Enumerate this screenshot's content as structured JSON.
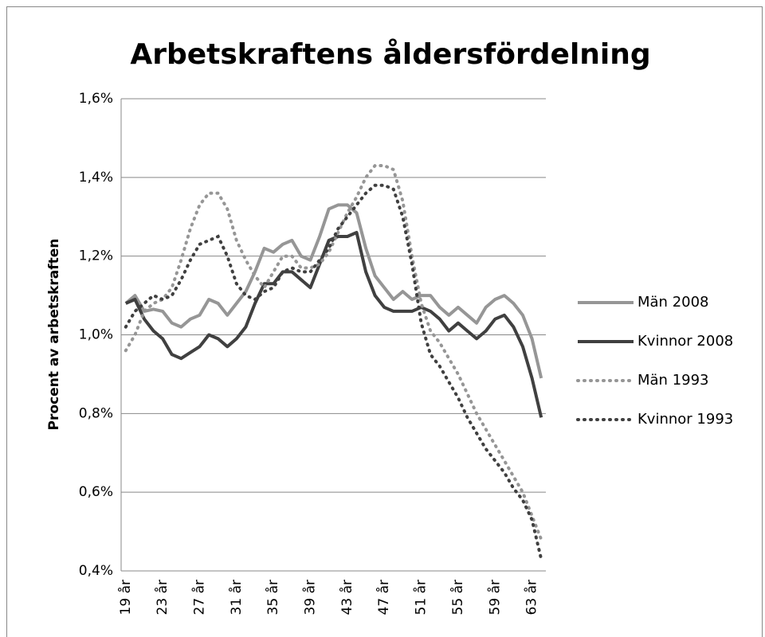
{
  "chart_data": {
    "type": "line",
    "title": "Arbetskraftens åldersfördelning",
    "y_label": "Procent av arbetskraften",
    "categories": [
      "19 år",
      null,
      null,
      null,
      "23 år",
      null,
      null,
      null,
      "27 år",
      null,
      null,
      null,
      "31 år",
      null,
      null,
      null,
      "35 år",
      null,
      null,
      null,
      "39 år",
      null,
      null,
      null,
      "43 år",
      null,
      null,
      null,
      "47 år",
      null,
      null,
      null,
      "51 år",
      null,
      null,
      null,
      "55 år",
      null,
      null,
      null,
      "59 år",
      null,
      null,
      null,
      "63 år",
      null
    ],
    "ylim": [
      0.4,
      1.6
    ],
    "yticks": [
      {
        "value": 0.4,
        "label": "0,4%"
      },
      {
        "value": 0.6,
        "label": "0,6%"
      },
      {
        "value": 0.8,
        "label": "0,8%"
      },
      {
        "value": 1.0,
        "label": "1,0%"
      },
      {
        "value": 1.2,
        "label": "1,2%"
      },
      {
        "value": 1.4,
        "label": "1,4%"
      },
      {
        "value": 1.6,
        "label": "1,6%"
      }
    ],
    "grid": true,
    "legend": "right",
    "series": [
      {
        "name": "Män 2008",
        "color": "#969696",
        "dash": "solid",
        "values": [
          1.08,
          1.1,
          1.06,
          1.065,
          1.06,
          1.03,
          1.02,
          1.04,
          1.05,
          1.09,
          1.08,
          1.05,
          1.08,
          1.11,
          1.16,
          1.22,
          1.21,
          1.23,
          1.24,
          1.2,
          1.19,
          1.25,
          1.32,
          1.33,
          1.33,
          1.31,
          1.22,
          1.15,
          1.12,
          1.09,
          1.11,
          1.09,
          1.1,
          1.1,
          1.07,
          1.05,
          1.07,
          1.05,
          1.03,
          1.07,
          1.09,
          1.1,
          1.08,
          1.05,
          0.99,
          0.89
        ]
      },
      {
        "name": "Kvinnor 2008",
        "color": "#404040",
        "dash": "solid",
        "values": [
          1.08,
          1.09,
          1.04,
          1.01,
          0.99,
          0.95,
          0.94,
          0.955,
          0.97,
          1.0,
          0.99,
          0.97,
          0.99,
          1.02,
          1.08,
          1.13,
          1.13,
          1.16,
          1.16,
          1.14,
          1.12,
          1.18,
          1.24,
          1.25,
          1.25,
          1.26,
          1.16,
          1.1,
          1.07,
          1.06,
          1.06,
          1.06,
          1.07,
          1.06,
          1.04,
          1.01,
          1.03,
          1.01,
          0.99,
          1.01,
          1.04,
          1.05,
          1.02,
          0.97,
          0.89,
          0.79
        ]
      },
      {
        "name": "Män 1993",
        "color": "#969696",
        "dash": "dotted",
        "values": [
          0.96,
          1.0,
          1.06,
          1.08,
          1.09,
          1.12,
          1.19,
          1.27,
          1.33,
          1.36,
          1.36,
          1.32,
          1.24,
          1.19,
          1.15,
          1.12,
          1.16,
          1.2,
          1.2,
          1.17,
          1.17,
          1.18,
          1.21,
          1.26,
          1.31,
          1.35,
          1.4,
          1.43,
          1.43,
          1.42,
          1.34,
          1.2,
          1.08,
          1.01,
          0.98,
          0.94,
          0.9,
          0.85,
          0.8,
          0.76,
          0.72,
          0.68,
          0.64,
          0.6,
          0.54,
          0.48
        ]
      },
      {
        "name": "Kvinnor 1993",
        "color": "#404040",
        "dash": "dotted",
        "values": [
          1.02,
          1.06,
          1.08,
          1.1,
          1.09,
          1.1,
          1.14,
          1.19,
          1.23,
          1.24,
          1.25,
          1.2,
          1.13,
          1.1,
          1.09,
          1.11,
          1.12,
          1.16,
          1.17,
          1.16,
          1.16,
          1.19,
          1.22,
          1.27,
          1.3,
          1.33,
          1.36,
          1.38,
          1.38,
          1.37,
          1.3,
          1.18,
          1.03,
          0.95,
          0.92,
          0.88,
          0.84,
          0.79,
          0.75,
          0.71,
          0.68,
          0.65,
          0.61,
          0.58,
          0.53,
          0.43
        ]
      }
    ]
  }
}
